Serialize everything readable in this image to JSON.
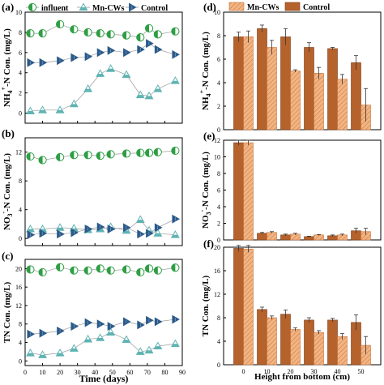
{
  "colors": {
    "influent": "#2e9e44",
    "mn_cws": "#5fb3b3",
    "control": "#2a5a8a",
    "bar_mn": "#f2b483",
    "bar_control": "#b5622d",
    "line": "#9a9a9a"
  },
  "chart_data": [
    {
      "panel": "(a)",
      "type": "scatter",
      "ylabel_main": "NH",
      "ylabel_sub": "4",
      "ylabel_sup": "+",
      "ylabel_tail": "-N Con. (mg/L)",
      "xlim": [
        0,
        90
      ],
      "ylim": [
        -1,
        10
      ],
      "yticks": [
        0,
        2,
        4,
        6,
        8,
        10
      ],
      "xticks": [
        0,
        10,
        20,
        30,
        40,
        50,
        60,
        70,
        80,
        90
      ],
      "legend": [
        "influent",
        "Mn-CWs",
        "Control"
      ],
      "x": [
        3,
        10,
        20,
        28,
        36,
        43,
        49,
        58,
        66,
        71,
        76,
        86
      ],
      "series": [
        {
          "name": "influent",
          "marker": "half-circle",
          "values": [
            7.9,
            7.9,
            8.8,
            8.3,
            8.0,
            7.9,
            7.8,
            7.7,
            7.5,
            8.4,
            7.8,
            8.1
          ]
        },
        {
          "name": "Mn-CWs",
          "marker": "triangle-up",
          "values": [
            0.2,
            0.3,
            0.3,
            0.9,
            2.4,
            3.9,
            4.4,
            3.8,
            1.8,
            1.7,
            2.4,
            3.2
          ]
        },
        {
          "name": "Control",
          "marker": "triangle-right",
          "values": [
            5.0,
            5.0,
            5.2,
            5.5,
            5.6,
            6.0,
            6.2,
            6.0,
            6.3,
            6.9,
            6.3,
            5.8
          ]
        }
      ]
    },
    {
      "panel": "(b)",
      "type": "scatter",
      "ylabel_main": "NO",
      "ylabel_sub": "3",
      "ylabel_sup": "-",
      "ylabel_tail": "-N Con. (mg/L)",
      "xlim": [
        0,
        90
      ],
      "ylim": [
        -1,
        14
      ],
      "yticks": [
        0,
        4,
        8,
        12
      ],
      "xticks": [
        0,
        10,
        20,
        30,
        40,
        50,
        60,
        70,
        80,
        90
      ],
      "x": [
        3,
        10,
        20,
        28,
        36,
        43,
        49,
        58,
        66,
        71,
        76,
        86
      ],
      "series": [
        {
          "name": "influent",
          "marker": "half-circle",
          "values": [
            11.4,
            10.9,
            11.3,
            11.6,
            11.6,
            11.5,
            11.7,
            11.8,
            11.9,
            11.9,
            12.0,
            12.2
          ]
        },
        {
          "name": "Mn-CWs",
          "marker": "triangle-up",
          "values": [
            1.3,
            1.3,
            1.5,
            1.4,
            1.2,
            1.3,
            1.6,
            1.1,
            2.6,
            1.1,
            0.7,
            0.5
          ]
        },
        {
          "name": "Control",
          "marker": "triangle-right",
          "values": [
            0.5,
            0.7,
            0.6,
            0.8,
            1.3,
            1.6,
            1.3,
            1.5,
            0.6,
            0.7,
            1.5,
            2.7
          ]
        }
      ]
    },
    {
      "panel": "(c)",
      "type": "scatter",
      "ylabel_main": "TN Con. (mg/L)",
      "xlim": [
        0,
        90
      ],
      "ylim": [
        -1,
        22
      ],
      "yticks": [
        0,
        4,
        8,
        12,
        16,
        20
      ],
      "xticks": [
        0,
        10,
        20,
        30,
        40,
        50,
        60,
        70,
        80,
        90
      ],
      "xticklabels": [
        "0",
        "10",
        "20",
        "30",
        "40",
        "50",
        "60",
        "70",
        "80",
        "90"
      ],
      "xlabel": "Time (days)",
      "x": [
        3,
        10,
        20,
        28,
        36,
        43,
        49,
        58,
        66,
        71,
        76,
        86
      ],
      "series": [
        {
          "name": "influent",
          "marker": "half-circle",
          "values": [
            19.8,
            19.2,
            20.3,
            19.6,
            19.6,
            20.0,
            19.6,
            19.8,
            19.2,
            20.0,
            19.6,
            20.2
          ]
        },
        {
          "name": "Mn-CWs",
          "marker": "triangle-up",
          "values": [
            1.7,
            1.3,
            1.7,
            2.7,
            4.7,
            5.0,
            6.2,
            4.6,
            2.0,
            2.3,
            3.2,
            3.7
          ]
        },
        {
          "name": "Control",
          "marker": "triangle-right",
          "values": [
            5.8,
            6.0,
            6.5,
            7.5,
            8.3,
            8.0,
            7.5,
            8.5,
            7.8,
            8.8,
            8.5,
            9.0
          ]
        }
      ]
    },
    {
      "panel": "(d)",
      "type": "bar",
      "ylabel_main": "NH",
      "ylabel_sub": "4",
      "ylabel_sup": "+",
      "ylabel_tail": "-N Con. (mg/L)",
      "ylim": [
        0,
        10
      ],
      "yticks": [
        0,
        2,
        4,
        6,
        8,
        10
      ],
      "categories": [
        "0",
        "10",
        "20",
        "30",
        "40",
        "50"
      ],
      "legend": [
        "Mn-CWs",
        "Control"
      ],
      "series": [
        {
          "name": "Control",
          "values": [
            7.9,
            8.6,
            7.9,
            7.0,
            6.9,
            5.7
          ],
          "errors": [
            0.4,
            0.3,
            0.7,
            0.4,
            0.1,
            0.6
          ]
        },
        {
          "name": "Mn-CWs",
          "values": [
            7.9,
            7.0,
            5.0,
            4.8,
            4.3,
            2.1
          ],
          "errors": [
            0.5,
            0.6,
            0.1,
            0.5,
            0.4,
            1.4
          ]
        }
      ]
    },
    {
      "panel": "(e)",
      "type": "bar",
      "ylabel_main": "NO",
      "ylabel_sub": "3",
      "ylabel_sup": "-",
      "ylabel_tail": "-N Con. (mg/L)",
      "ylim": [
        0,
        12
      ],
      "yticks": [
        0,
        2,
        4,
        6,
        8,
        10,
        12
      ],
      "categories": [
        "0",
        "10",
        "20",
        "30",
        "40",
        "50"
      ],
      "series": [
        {
          "name": "Control",
          "values": [
            11.7,
            0.8,
            0.6,
            0.4,
            0.5,
            1.1
          ],
          "errors": [
            0.3,
            0.1,
            0.1,
            0.05,
            0.1,
            0.3
          ]
        },
        {
          "name": "Mn-CWs",
          "values": [
            11.7,
            0.9,
            0.7,
            0.6,
            0.6,
            1.0
          ],
          "errors": [
            0.3,
            0.1,
            0.1,
            0.05,
            0.1,
            0.4
          ]
        }
      ]
    },
    {
      "panel": "(f)",
      "type": "bar",
      "ylabel_main": "TN Con. (mg/L)",
      "ylim": [
        0,
        20
      ],
      "yticks": [
        0,
        4,
        8,
        12,
        16,
        20
      ],
      "categories": [
        "0",
        "10",
        "20",
        "30",
        "40",
        "50"
      ],
      "xticklabels": [
        "0",
        "10",
        "20",
        "30",
        "40",
        "50"
      ],
      "xlabel": "Height from bottom (cm)",
      "series": [
        {
          "name": "Control",
          "values": [
            19.8,
            9.4,
            8.6,
            7.6,
            7.6,
            7.2
          ],
          "errors": [
            0.5,
            0.4,
            0.7,
            0.4,
            0.3,
            1.3
          ]
        },
        {
          "name": "Mn-CWs",
          "values": [
            19.7,
            8.0,
            6.0,
            5.5,
            4.8,
            3.3
          ],
          "errors": [
            0.6,
            0.3,
            0.3,
            0.3,
            0.5,
            1.5
          ]
        }
      ]
    }
  ]
}
